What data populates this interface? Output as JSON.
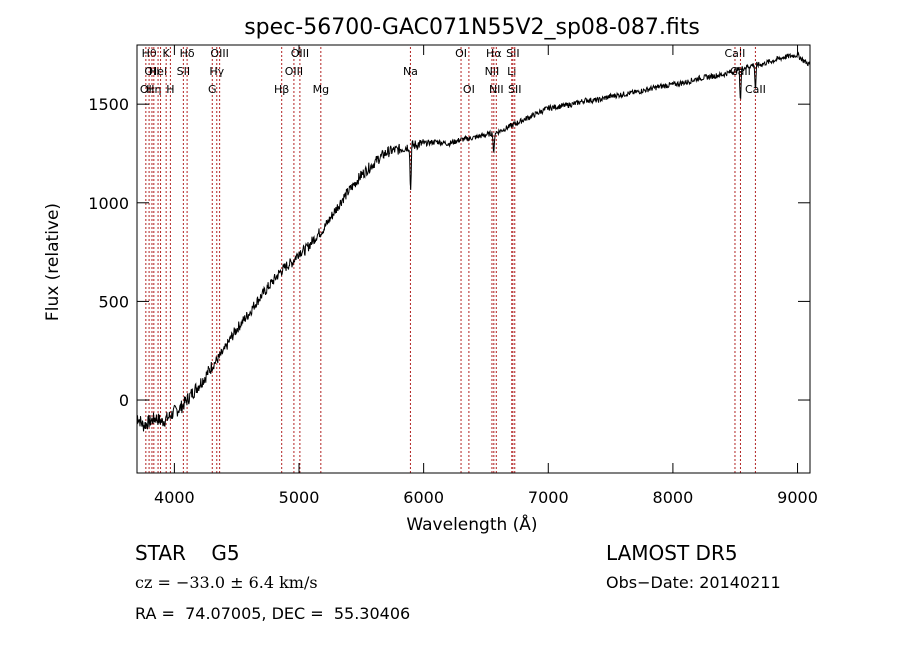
{
  "chart_data": {
    "type": "line",
    "title": "spec-56700-GAC071N55V2_sp08-087.fits",
    "xlabel": "Wavelength (Å)",
    "ylabel": "Flux (relative)",
    "xlim": [
      3700,
      9100
    ],
    "ylim": [
      -370,
      1800
    ],
    "xticks": [
      4000,
      5000,
      6000,
      7000,
      8000,
      9000
    ],
    "yticks": [
      0,
      500,
      1000,
      1500
    ],
    "grid": false,
    "line_color": "#000000",
    "marker_color": "#b22222",
    "series": [
      {
        "x": [
          3700,
          3750,
          3800,
          3850,
          3900,
          3950,
          4000,
          4050,
          4100,
          4150,
          4200,
          4250,
          4300,
          4350,
          4400,
          4450,
          4500,
          4550,
          4600,
          4650,
          4700,
          4750,
          4800,
          4850,
          4900,
          4950,
          5000,
          5050,
          5100,
          5150,
          5200,
          5250,
          5300,
          5350,
          5400,
          5450,
          5500,
          5550,
          5600,
          5650,
          5700,
          5750,
          5800,
          5850,
          5900,
          5950,
          6000,
          6100,
          6200,
          6300,
          6400,
          6500,
          6600,
          6700,
          6800,
          6900,
          7000,
          7100,
          7200,
          7300,
          7400,
          7500,
          7600,
          7700,
          7800,
          7900,
          8000,
          8100,
          8200,
          8300,
          8400,
          8500,
          8550,
          8600,
          8650,
          8700,
          8800,
          8900,
          9000,
          9050,
          9100
        ],
        "y": [
          -80,
          -130,
          -110,
          -90,
          -110,
          -90,
          -60,
          -40,
          0,
          40,
          80,
          120,
          170,
          210,
          250,
          310,
          360,
          400,
          440,
          490,
          530,
          570,
          610,
          650,
          680,
          700,
          750,
          760,
          800,
          840,
          870,
          920,
          970,
          1020,
          1060,
          1100,
          1140,
          1170,
          1200,
          1230,
          1255,
          1265,
          1270,
          1280,
          1290,
          1295,
          1300,
          1310,
          1300,
          1320,
          1330,
          1345,
          1360,
          1390,
          1420,
          1450,
          1480,
          1490,
          1500,
          1520,
          1520,
          1540,
          1550,
          1560,
          1575,
          1590,
          1600,
          1610,
          1630,
          1640,
          1650,
          1670,
          1680,
          1690,
          1700,
          1700,
          1720,
          1740,
          1750,
          1720,
          1700
        ]
      }
    ],
    "features": [
      {
        "x": 5895,
        "depth": 250
      },
      {
        "x": 6563,
        "depth": 120
      },
      {
        "x": 8542,
        "depth": 180
      },
      {
        "x": 8662,
        "depth": 140
      }
    ],
    "line_markers": [
      {
        "wl": 3771,
        "label": "OI",
        "row": 3
      },
      {
        "wl": 3797,
        "label": "Hθ",
        "row": 1
      },
      {
        "wl": 3820,
        "label": "OII",
        "row": 2
      },
      {
        "wl": 3835,
        "label": "Hη",
        "row": 3
      },
      {
        "wl": 3869,
        "label": "HeI",
        "row": 2
      },
      {
        "wl": 3889,
        "label": "",
        "row": 0
      },
      {
        "wl": 3934,
        "label": "K",
        "row": 1
      },
      {
        "wl": 3968,
        "label": "H",
        "row": 3
      },
      {
        "wl": 4072,
        "label": "SII",
        "row": 2
      },
      {
        "wl": 4102,
        "label": "Hδ",
        "row": 1
      },
      {
        "wl": 4304,
        "label": "G",
        "row": 3
      },
      {
        "wl": 4340,
        "label": "Hγ",
        "row": 2
      },
      {
        "wl": 4363,
        "label": "OIII",
        "row": 1
      },
      {
        "wl": 4861,
        "label": "Hβ",
        "row": 3
      },
      {
        "wl": 4959,
        "label": "OIII",
        "row": 2
      },
      {
        "wl": 5007,
        "label": "OIII",
        "row": 1
      },
      {
        "wl": 5175,
        "label": "Mg",
        "row": 3
      },
      {
        "wl": 5894,
        "label": "Na",
        "row": 2
      },
      {
        "wl": 6300,
        "label": "OI",
        "row": 1
      },
      {
        "wl": 6363,
        "label": "OI",
        "row": 3
      },
      {
        "wl": 6548,
        "label": "NII",
        "row": 2
      },
      {
        "wl": 6563,
        "label": "Hα",
        "row": 1
      },
      {
        "wl": 6583,
        "label": "NII",
        "row": 3
      },
      {
        "wl": 6707,
        "label": "Li",
        "row": 2
      },
      {
        "wl": 6716,
        "label": "SII",
        "row": 1
      },
      {
        "wl": 6731,
        "label": "SII",
        "row": 3
      },
      {
        "wl": 8498,
        "label": "CaII",
        "row": 1
      },
      {
        "wl": 8542,
        "label": "CaII",
        "row": 2
      },
      {
        "wl": 8662,
        "label": "CaII",
        "row": 3
      }
    ]
  },
  "info": {
    "class_label": "STAR    G5",
    "survey": "LAMOST DR5",
    "cz_text": "cz = −33.0 ± 6.4 km/s",
    "obs_date": "Obs−Date: 20140211",
    "coords": "RA =  74.07005, DEC =  55.30406"
  }
}
